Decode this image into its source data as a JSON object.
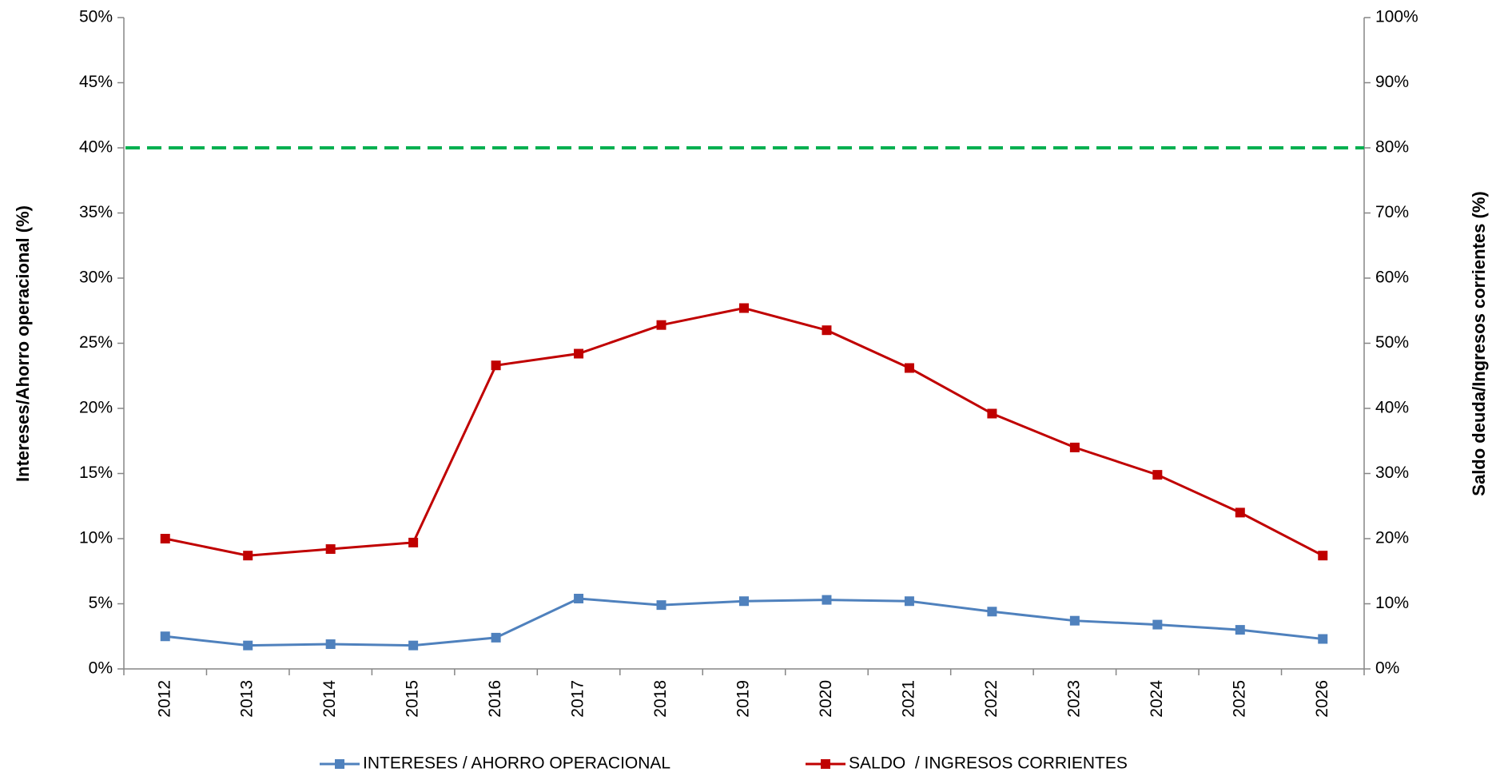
{
  "chart_data": {
    "type": "line",
    "y_label": "Intereses/Ahorro operacional (%)",
    "y2_label": "Saldo deuda/Ingresos corrientes (%)",
    "categories": [
      "2012",
      "2013",
      "2014",
      "2015",
      "2016",
      "2017",
      "2018",
      "2019",
      "2020",
      "2021",
      "2022",
      "2023",
      "2024",
      "2025",
      "2026"
    ],
    "series": [
      {
        "name": "INTERESES / AHORRO OPERACIONAL",
        "color": "#4f81bd",
        "axis": "y",
        "values": [
          2.5,
          1.8,
          1.9,
          1.8,
          2.4,
          5.4,
          4.9,
          5.2,
          5.3,
          5.2,
          4.4,
          3.7,
          3.4,
          3.0,
          2.3
        ]
      },
      {
        "name": "SALDO  / INGRESOS CORRIENTES",
        "color": "#c00000",
        "axis": "y2",
        "values": [
          20,
          17.4,
          18.4,
          19.4,
          46.6,
          48.4,
          52.8,
          55.4,
          52,
          46.2,
          39.2,
          34,
          29.8,
          24,
          17.4
        ]
      }
    ],
    "reference_lines": [
      {
        "axis": "y2",
        "value": 80,
        "color": "#00b050",
        "dashed": true
      }
    ],
    "ylim": [
      0,
      50
    ],
    "yticks": [
      {
        "value": 0,
        "label": "0%"
      },
      {
        "value": 5,
        "label": "5%"
      },
      {
        "value": 10,
        "label": "10%"
      },
      {
        "value": 15,
        "label": "15%"
      },
      {
        "value": 20,
        "label": "20%"
      },
      {
        "value": 25,
        "label": "25%"
      },
      {
        "value": 30,
        "label": "30%"
      },
      {
        "value": 35,
        "label": "35%"
      },
      {
        "value": 40,
        "label": "40%"
      },
      {
        "value": 45,
        "label": "45%"
      },
      {
        "value": 50,
        "label": "50%"
      }
    ],
    "y2lim": [
      0,
      100
    ],
    "y2ticks": [
      {
        "value": 0,
        "label": "0%"
      },
      {
        "value": 10,
        "label": "10%"
      },
      {
        "value": 20,
        "label": "20%"
      },
      {
        "value": 30,
        "label": "30%"
      },
      {
        "value": 40,
        "label": "40%"
      },
      {
        "value": 50,
        "label": "50%"
      },
      {
        "value": 60,
        "label": "60%"
      },
      {
        "value": 70,
        "label": "70%"
      },
      {
        "value": 80,
        "label": "80%"
      },
      {
        "value": 90,
        "label": "90%"
      },
      {
        "value": 100,
        "label": "100%"
      }
    ],
    "grid": false,
    "legend": "bottom"
  }
}
